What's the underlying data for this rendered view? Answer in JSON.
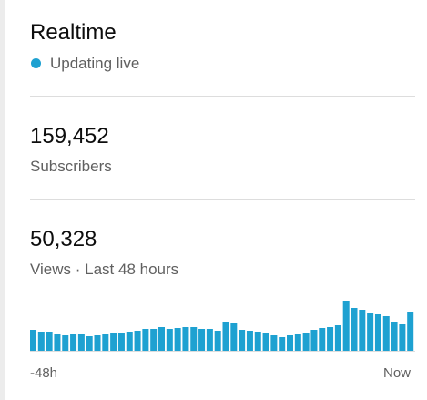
{
  "header": {
    "title": "Realtime",
    "status": "Updating live"
  },
  "subscribers": {
    "value": "159,452",
    "label": "Subscribers"
  },
  "views": {
    "value": "50,328",
    "label": "Views · Last 48 hours"
  },
  "chart_data": {
    "type": "bar",
    "values": [
      23,
      21,
      21,
      18,
      17,
      18,
      18,
      16,
      17,
      18,
      19,
      20,
      21,
      22,
      24,
      24,
      26,
      24,
      25,
      26,
      26,
      24,
      24,
      22,
      32,
      31,
      23,
      22,
      21,
      19,
      17,
      15,
      17,
      18,
      20,
      23,
      25,
      26,
      28,
      55,
      47,
      45,
      42,
      40,
      38,
      32,
      29,
      43
    ],
    "color": "#1ea1d1",
    "x_start_label": "-48h",
    "x_end_label": "Now"
  }
}
